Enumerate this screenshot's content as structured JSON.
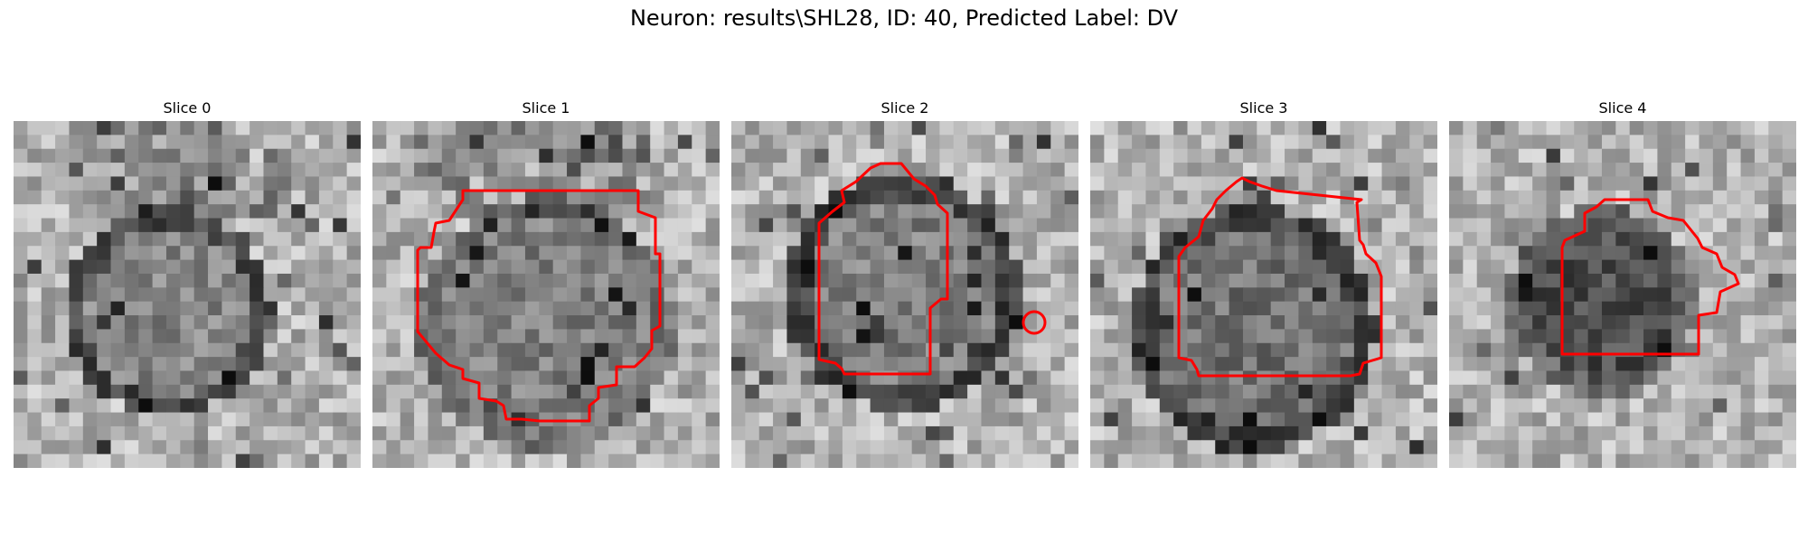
{
  "title": "Neuron: results\\SHL28, ID: 40, Predicted Label: DV",
  "colors": {
    "contour": "#ff0000",
    "background": "#ffffff"
  },
  "slices": [
    {
      "label": "Slice 0",
      "has_contour": false
    },
    {
      "label": "Slice 1",
      "has_contour": true
    },
    {
      "label": "Slice 2",
      "has_contour": true
    },
    {
      "label": "Slice 3",
      "has_contour": true
    },
    {
      "label": "Slice 4",
      "has_contour": true
    }
  ]
}
